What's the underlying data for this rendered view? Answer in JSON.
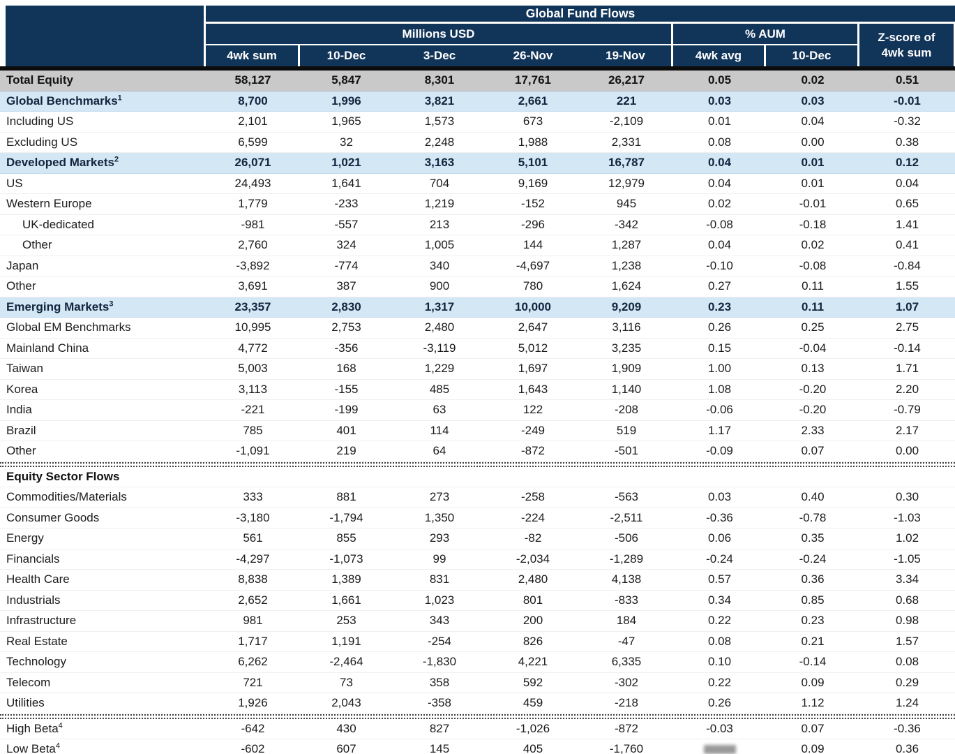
{
  "title": "Global Fund Flows",
  "header": {
    "millions_usd": "Millions USD",
    "pct_aum": "% AUM",
    "zscore_line1": "Z-score of",
    "zscore_line2": "4wk sum",
    "columns": [
      "4wk sum",
      "10-Dec",
      "3-Dec",
      "26-Nov",
      "19-Nov",
      "4wk avg",
      "10-Dec"
    ]
  },
  "colors": {
    "header_navy": "#113459",
    "total_row_gray": "#c9c9c9",
    "section_row_blue": "#d4e7f5",
    "divider_dots": "#3d3d3d"
  },
  "chart_data": {
    "type": "table",
    "title": "Global Fund Flows",
    "column_groups": [
      {
        "label": "Millions USD",
        "span": 5
      },
      {
        "label": "% AUM",
        "span": 2
      },
      {
        "label": "Z-score of 4wk sum",
        "span": 1
      }
    ],
    "columns": [
      "4wk sum",
      "10-Dec",
      "3-Dec",
      "26-Nov",
      "19-Nov",
      "4wk avg",
      "10-Dec",
      "Z-score of 4wk sum"
    ],
    "illegible_cells": [
      {
        "row": "Low Beta",
        "column": "4wk avg"
      }
    ],
    "rows": [
      {
        "label": "Total Equity",
        "style": "total",
        "values": [
          "58,127",
          "5,847",
          "8,301",
          "17,761",
          "26,217",
          "0.05",
          "0.02",
          "0.51"
        ]
      },
      {
        "label": "Global Benchmarks",
        "sup": "1",
        "style": "section",
        "values": [
          "8,700",
          "1,996",
          "3,821",
          "2,661",
          "221",
          "0.03",
          "0.03",
          "-0.01"
        ]
      },
      {
        "label": "Including US",
        "values": [
          "2,101",
          "1,965",
          "1,573",
          "673",
          "-2,109",
          "0.01",
          "0.04",
          "-0.32"
        ]
      },
      {
        "label": "Excluding US",
        "values": [
          "6,599",
          "32",
          "2,248",
          "1,988",
          "2,331",
          "0.08",
          "0.00",
          "0.38"
        ]
      },
      {
        "label": "Developed Markets",
        "sup": "2",
        "style": "section",
        "values": [
          "26,071",
          "1,021",
          "3,163",
          "5,101",
          "16,787",
          "0.04",
          "0.01",
          "0.12"
        ]
      },
      {
        "label": "US",
        "values": [
          "24,493",
          "1,641",
          "704",
          "9,169",
          "12,979",
          "0.04",
          "0.01",
          "0.04"
        ]
      },
      {
        "label": "Western Europe",
        "values": [
          "1,779",
          "-233",
          "1,219",
          "-152",
          "945",
          "0.02",
          "-0.01",
          "0.65"
        ]
      },
      {
        "label": "UK-dedicated",
        "indent": true,
        "values": [
          "-981",
          "-557",
          "213",
          "-296",
          "-342",
          "-0.08",
          "-0.18",
          "1.41"
        ]
      },
      {
        "label": "Other",
        "indent": true,
        "values": [
          "2,760",
          "324",
          "1,005",
          "144",
          "1,287",
          "0.04",
          "0.02",
          "0.41"
        ]
      },
      {
        "label": "Japan",
        "values": [
          "-3,892",
          "-774",
          "340",
          "-4,697",
          "1,238",
          "-0.10",
          "-0.08",
          "-0.84"
        ]
      },
      {
        "label": "Other",
        "values": [
          "3,691",
          "387",
          "900",
          "780",
          "1,624",
          "0.27",
          "0.11",
          "1.55"
        ]
      },
      {
        "label": "Emerging Markets",
        "sup": "3",
        "style": "section",
        "values": [
          "23,357",
          "2,830",
          "1,317",
          "10,000",
          "9,209",
          "0.23",
          "0.11",
          "1.07"
        ]
      },
      {
        "label": "Global EM Benchmarks",
        "values": [
          "10,995",
          "2,753",
          "2,480",
          "2,647",
          "3,116",
          "0.26",
          "0.25",
          "2.75"
        ]
      },
      {
        "label": "Mainland China",
        "values": [
          "4,772",
          "-356",
          "-3,119",
          "5,012",
          "3,235",
          "0.15",
          "-0.04",
          "-0.14"
        ]
      },
      {
        "label": "Taiwan",
        "values": [
          "5,003",
          "168",
          "1,229",
          "1,697",
          "1,909",
          "1.00",
          "0.13",
          "1.71"
        ]
      },
      {
        "label": "Korea",
        "values": [
          "3,113",
          "-155",
          "485",
          "1,643",
          "1,140",
          "1.08",
          "-0.20",
          "2.20"
        ]
      },
      {
        "label": "India",
        "values": [
          "-221",
          "-199",
          "63",
          "122",
          "-208",
          "-0.06",
          "-0.20",
          "-0.79"
        ]
      },
      {
        "label": "Brazil",
        "values": [
          "785",
          "401",
          "114",
          "-249",
          "519",
          "1.17",
          "2.33",
          "2.17"
        ]
      },
      {
        "label": "Other",
        "values": [
          "-1,091",
          "219",
          "64",
          "-872",
          "-501",
          "-0.09",
          "0.07",
          "0.00"
        ]
      },
      {
        "label": "Equity Sector Flows",
        "style": "groupheader",
        "divider_before": true,
        "values": [
          "",
          "",
          "",
          "",
          "",
          "",
          "",
          ""
        ]
      },
      {
        "label": "Commodities/Materials",
        "values": [
          "333",
          "881",
          "273",
          "-258",
          "-563",
          "0.03",
          "0.40",
          "0.30"
        ]
      },
      {
        "label": "Consumer Goods",
        "values": [
          "-3,180",
          "-1,794",
          "1,350",
          "-224",
          "-2,511",
          "-0.36",
          "-0.78",
          "-1.03"
        ]
      },
      {
        "label": "Energy",
        "values": [
          "561",
          "855",
          "293",
          "-82",
          "-506",
          "0.06",
          "0.35",
          "1.02"
        ]
      },
      {
        "label": "Financials",
        "values": [
          "-4,297",
          "-1,073",
          "99",
          "-2,034",
          "-1,289",
          "-0.24",
          "-0.24",
          "-1.05"
        ]
      },
      {
        "label": "Health Care",
        "values": [
          "8,838",
          "1,389",
          "831",
          "2,480",
          "4,138",
          "0.57",
          "0.36",
          "3.34"
        ]
      },
      {
        "label": "Industrials",
        "values": [
          "2,652",
          "1,661",
          "1,023",
          "801",
          "-833",
          "0.34",
          "0.85",
          "0.68"
        ]
      },
      {
        "label": "Infrastructure",
        "values": [
          "981",
          "253",
          "343",
          "200",
          "184",
          "0.22",
          "0.23",
          "0.98"
        ]
      },
      {
        "label": "Real Estate",
        "values": [
          "1,717",
          "1,191",
          "-254",
          "826",
          "-47",
          "0.08",
          "0.21",
          "1.57"
        ]
      },
      {
        "label": "Technology",
        "values": [
          "6,262",
          "-2,464",
          "-1,830",
          "4,221",
          "6,335",
          "0.10",
          "-0.14",
          "0.08"
        ]
      },
      {
        "label": "Telecom",
        "values": [
          "721",
          "73",
          "358",
          "592",
          "-302",
          "0.22",
          "0.09",
          "0.29"
        ]
      },
      {
        "label": "Utilities",
        "values": [
          "1,926",
          "2,043",
          "-358",
          "459",
          "-218",
          "0.26",
          "1.12",
          "1.24"
        ]
      },
      {
        "label": "High Beta",
        "sup": "4",
        "divider_before": true,
        "values": [
          "-642",
          "430",
          "827",
          "-1,026",
          "-872",
          "-0.03",
          "0.07",
          "-0.36"
        ]
      },
      {
        "label": "Low Beta",
        "sup": "4",
        "values": [
          "-602",
          "607",
          "145",
          "405",
          "-1,760",
          "",
          "0.09",
          "0.36"
        ],
        "smudge": [
          5
        ]
      }
    ]
  }
}
